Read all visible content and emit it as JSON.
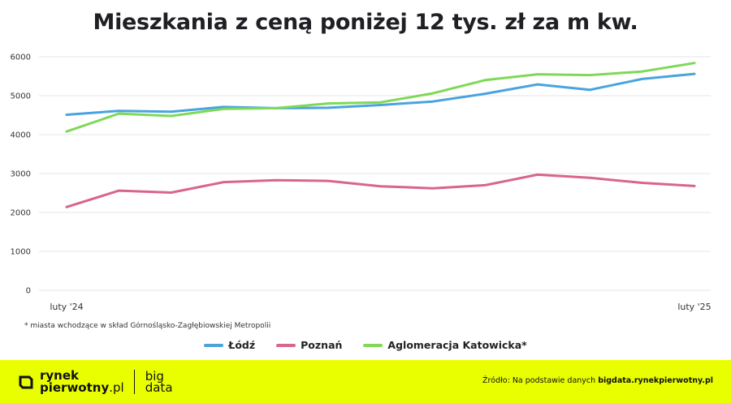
{
  "chart_data": {
    "type": "line",
    "title": "Mieszkania z ceną poniżej 12 tys. zł za m kw.",
    "xlabel": "",
    "ylabel": "",
    "ylim": [
      0,
      6000
    ],
    "yticks": [
      0,
      1000,
      2000,
      3000,
      4000,
      5000,
      6000
    ],
    "x_tick_labels": [
      "luty '24",
      "luty '25"
    ],
    "grid": "horizontal",
    "legend_position": "bottom",
    "x_count": 13,
    "series": [
      {
        "name": "Łódź",
        "color": "#4aa3df",
        "values": [
          4510,
          4610,
          4590,
          4710,
          4680,
          4690,
          4760,
          4850,
          5050,
          5290,
          5150,
          5430,
          5560
        ]
      },
      {
        "name": "Poznań",
        "color": "#d9658c",
        "values": [
          2140,
          2560,
          2510,
          2780,
          2830,
          2810,
          2670,
          2620,
          2700,
          2970,
          2890,
          2760,
          2680
        ]
      },
      {
        "name": "Aglomeracja Katowicka*",
        "color": "#7ed957",
        "values": [
          4080,
          4540,
          4480,
          4660,
          4680,
          4800,
          4830,
          5060,
          5400,
          5550,
          5530,
          5620,
          5840
        ]
      }
    ]
  },
  "footnote": "* miasta wchodzące w skład Górnośląsko-Zagłębiowskiej Metropolii",
  "footer": {
    "logo_line1": "rynek",
    "logo_line2_a": "pierwotny",
    "logo_line2_b": ".pl",
    "logo_sub1": "big",
    "logo_sub2": "data",
    "source_prefix": "Źródło: Na podstawie danych ",
    "source_bold": "bigdata.rynekpierwotny.pl",
    "brand_color": "#e9ff00"
  }
}
